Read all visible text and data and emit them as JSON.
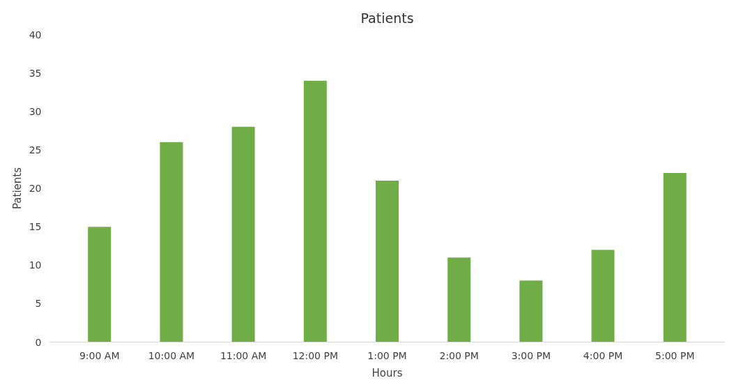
{
  "chart_data": {
    "type": "bar",
    "title": "Patients",
    "xlabel": "Hours",
    "ylabel": "Patients",
    "categories": [
      "9:00 AM",
      "10:00 AM",
      "11:00 AM",
      "12:00 PM",
      "1:00 PM",
      "2:00 PM",
      "3:00 PM",
      "4:00 PM",
      "5:00 PM"
    ],
    "values": [
      15,
      26,
      28,
      34,
      21,
      11,
      8,
      12,
      22
    ],
    "color": "#70ad47",
    "ylim": [
      0,
      40
    ],
    "yticks": [
      0,
      5,
      10,
      15,
      20,
      25,
      30,
      35,
      40
    ],
    "grid": false
  }
}
